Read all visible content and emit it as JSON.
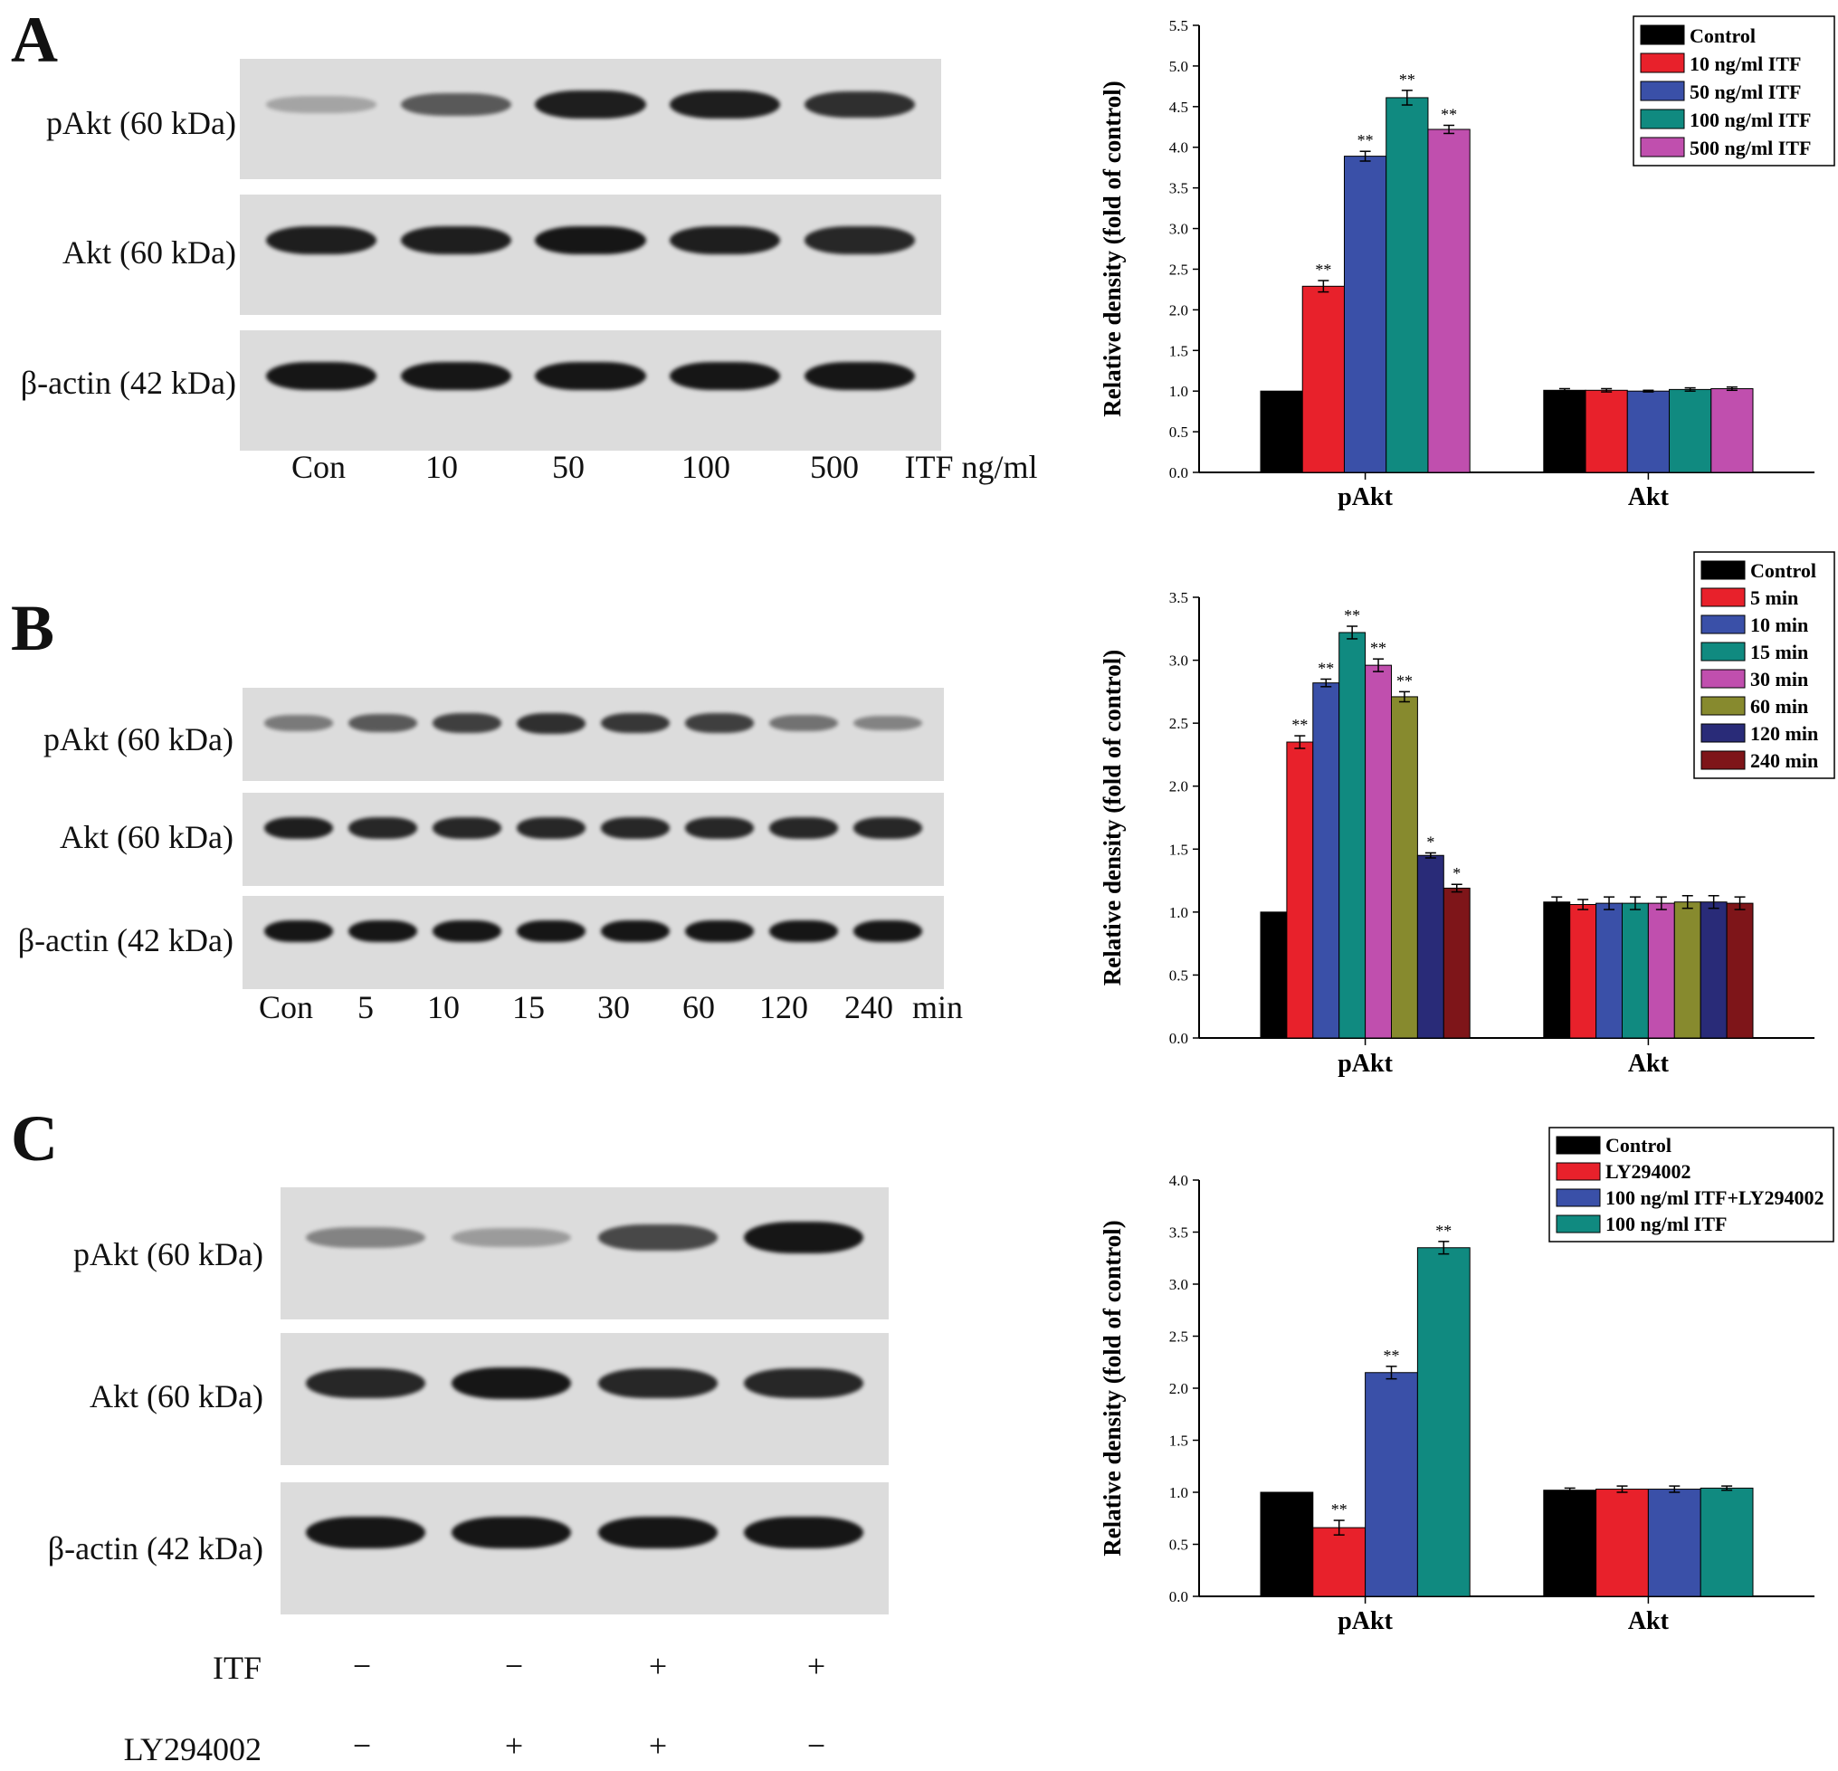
{
  "panels": [
    {
      "letter": "A",
      "blot_rows": [
        "pAkt (60 kDa)",
        "Akt (60 kDa)",
        "β-actin (42 kDa)"
      ],
      "lanes": [
        "Con",
        "10",
        "50",
        "100",
        "500"
      ],
      "lane_unit": "ITF ng/ml",
      "intensities": [
        [
          0.15,
          0.6,
          0.95,
          0.95,
          0.85
        ],
        [
          0.95,
          0.95,
          1.0,
          0.95,
          0.9
        ],
        [
          1.0,
          1.0,
          1.0,
          1.0,
          1.0
        ]
      ]
    },
    {
      "letter": "B",
      "blot_rows": [
        "pAkt (60 kDa)",
        "Akt (60 kDa)",
        "β-actin (42 kDa)"
      ],
      "lanes": [
        "Con",
        "5",
        "10",
        "15",
        "30",
        "60",
        "120",
        "240"
      ],
      "lane_unit": "min",
      "intensities": [
        [
          0.4,
          0.6,
          0.75,
          0.85,
          0.8,
          0.75,
          0.45,
          0.35
        ],
        [
          0.95,
          0.9,
          0.9,
          0.9,
          0.9,
          0.9,
          0.9,
          0.9
        ],
        [
          1.0,
          1.0,
          1.0,
          1.0,
          1.0,
          1.0,
          1.0,
          1.0
        ]
      ]
    },
    {
      "letter": "C",
      "blot_rows": [
        "pAkt (60 kDa)",
        "Akt (60 kDa)",
        "β-actin (42 kDa)"
      ],
      "lanes": [
        "",
        "",
        "",
        ""
      ],
      "lane_unit": "",
      "intensities": [
        [
          0.35,
          0.2,
          0.7,
          1.0
        ],
        [
          0.9,
          1.0,
          0.9,
          0.9
        ],
        [
          1.0,
          1.0,
          1.0,
          1.0
        ]
      ],
      "treatments": [
        {
          "label": "ITF",
          "signs": [
            "−",
            "−",
            "+",
            "+"
          ]
        },
        {
          "label": "LY294002",
          "signs": [
            "−",
            "+",
            "+",
            "−"
          ]
        }
      ]
    }
  ],
  "chart_data": [
    {
      "type": "bar",
      "ylabel": "Relative density (fold of control)",
      "ylim": [
        0,
        5.5
      ],
      "yticks": [
        "0.0",
        "0.5",
        "1.0",
        "1.5",
        "2.0",
        "2.5",
        "3.0",
        "3.5",
        "4.0",
        "4.5",
        "5.0",
        "5.5"
      ],
      "categories": [
        "pAkt",
        "Akt"
      ],
      "legend_position": "top-right",
      "series": [
        {
          "name": "Control",
          "color": "#000000",
          "values": [
            1.0,
            1.01
          ],
          "errors": [
            0,
            0.02
          ],
          "sig": [
            "",
            ""
          ]
        },
        {
          "name": "10 ng/ml ITF",
          "color": "#e8212b",
          "values": [
            2.29,
            1.01
          ],
          "errors": [
            0.07,
            0.02
          ],
          "sig": [
            "**",
            ""
          ]
        },
        {
          "name": "50 ng/ml ITF",
          "color": "#3a50a8",
          "values": [
            3.89,
            1.0
          ],
          "errors": [
            0.06,
            0.01
          ],
          "sig": [
            "**",
            ""
          ]
        },
        {
          "name": "100 ng/ml ITF",
          "color": "#108a80",
          "values": [
            4.61,
            1.02
          ],
          "errors": [
            0.09,
            0.02
          ],
          "sig": [
            "**",
            ""
          ]
        },
        {
          "name": "500 ng/ml ITF",
          "color": "#c04fae",
          "values": [
            4.22,
            1.03
          ],
          "errors": [
            0.05,
            0.02
          ],
          "sig": [
            "**",
            ""
          ]
        }
      ]
    },
    {
      "type": "bar",
      "ylabel": "Relative density (fold of control)",
      "ylim": [
        0,
        3.5
      ],
      "yticks": [
        "0.0",
        "0.5",
        "1.0",
        "1.5",
        "2.0",
        "2.5",
        "3.0",
        "3.5"
      ],
      "categories": [
        "pAkt",
        "Akt"
      ],
      "legend_position": "top-right",
      "series": [
        {
          "name": "Control",
          "color": "#000000",
          "values": [
            1.0,
            1.08
          ],
          "errors": [
            0,
            0.04
          ],
          "sig": [
            "",
            ""
          ]
        },
        {
          "name": "5 min",
          "color": "#e8212b",
          "values": [
            2.35,
            1.06
          ],
          "errors": [
            0.05,
            0.04
          ],
          "sig": [
            "**",
            ""
          ]
        },
        {
          "name": "10 min",
          "color": "#3a50a8",
          "values": [
            2.82,
            1.07
          ],
          "errors": [
            0.03,
            0.05
          ],
          "sig": [
            "**",
            ""
          ]
        },
        {
          "name": "15 min",
          "color": "#108a80",
          "values": [
            3.22,
            1.07
          ],
          "errors": [
            0.05,
            0.05
          ],
          "sig": [
            "**",
            ""
          ]
        },
        {
          "name": "30 min",
          "color": "#c04fae",
          "values": [
            2.96,
            1.07
          ],
          "errors": [
            0.05,
            0.05
          ],
          "sig": [
            "**",
            ""
          ]
        },
        {
          "name": "60 min",
          "color": "#878a2e",
          "values": [
            2.71,
            1.08
          ],
          "errors": [
            0.04,
            0.05
          ],
          "sig": [
            "**",
            ""
          ]
        },
        {
          "name": "120 min",
          "color": "#292b78",
          "values": [
            1.45,
            1.08
          ],
          "errors": [
            0.02,
            0.05
          ],
          "sig": [
            "*",
            ""
          ]
        },
        {
          "name": "240 min",
          "color": "#7e1519",
          "values": [
            1.19,
            1.07
          ],
          "errors": [
            0.03,
            0.05
          ],
          "sig": [
            "*",
            ""
          ]
        }
      ]
    },
    {
      "type": "bar",
      "ylabel": "Relative density (fold of control)",
      "ylim": [
        0,
        4.0
      ],
      "yticks": [
        "0.0",
        "0.5",
        "1.0",
        "1.5",
        "2.0",
        "2.5",
        "3.0",
        "3.5",
        "4.0"
      ],
      "categories": [
        "pAkt",
        "Akt"
      ],
      "legend_position": "top-right",
      "series": [
        {
          "name": "Control",
          "color": "#000000",
          "values": [
            1.0,
            1.02
          ],
          "errors": [
            0,
            0.02
          ],
          "sig": [
            "",
            ""
          ]
        },
        {
          "name": "LY294002",
          "color": "#e8212b",
          "values": [
            0.66,
            1.03
          ],
          "errors": [
            0.07,
            0.03
          ],
          "sig": [
            "**",
            ""
          ]
        },
        {
          "name": "100 ng/ml ITF+LY294002",
          "color": "#3a50a8",
          "values": [
            2.15,
            1.03
          ],
          "errors": [
            0.06,
            0.03
          ],
          "sig": [
            "**",
            ""
          ]
        },
        {
          "name": "100 ng/ml ITF",
          "color": "#108a80",
          "values": [
            3.35,
            1.04
          ],
          "errors": [
            0.06,
            0.02
          ],
          "sig": [
            "**",
            ""
          ]
        }
      ]
    }
  ]
}
